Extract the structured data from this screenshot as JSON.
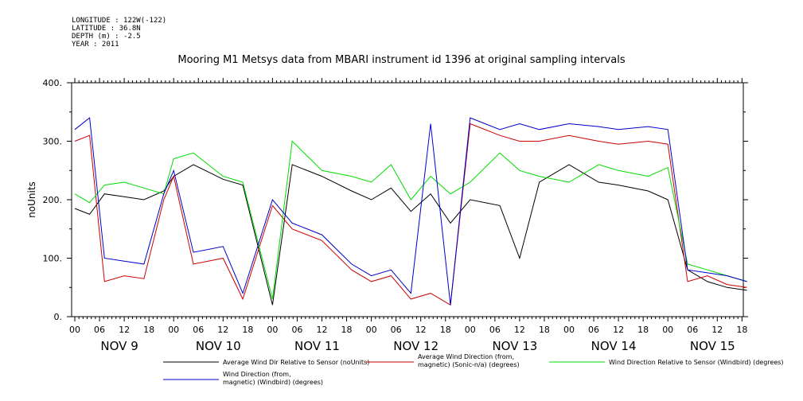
{
  "meta": {
    "longitude": "LONGITUDE : 122W(-122)",
    "latitude": "LATITUDE : 36.8N",
    "depth": "DEPTH (m) : -2.5",
    "year": "YEAR : 2011"
  },
  "chart_data": {
    "type": "line",
    "title": "Mooring M1 Metsys data from MBARI instrument id 1396 at original sampling intervals",
    "ylabel": "noUnits",
    "ylim": [
      0,
      400
    ],
    "yticks": [
      "0.",
      "100.",
      "200.",
      "300.",
      "400."
    ],
    "x_hour_ticks": [
      "00",
      "06",
      "12",
      "18",
      "00",
      "06",
      "12",
      "18",
      "00",
      "06",
      "12",
      "18",
      "00",
      "06",
      "12",
      "18",
      "00",
      "06",
      "12",
      "18",
      "00",
      "06",
      "12",
      "18",
      "00",
      "06",
      "12",
      "18"
    ],
    "day_labels": [
      "NOV  9",
      "NOV 10",
      "NOV 11",
      "NOV 12",
      "NOV 13",
      "NOV 14",
      "NOV 15"
    ],
    "xlim_days": [
      -0.05,
      6.9
    ],
    "grid": false,
    "series": [
      {
        "name": "Average Wind Dir Relative to Sensor (noUnits)",
        "color": "#000000",
        "x": [
          0,
          0.15,
          0.3,
          0.5,
          0.7,
          0.9,
          1.0,
          1.2,
          1.5,
          1.7,
          2.0,
          2.2,
          2.5,
          2.8,
          3.0,
          3.2,
          3.4,
          3.6,
          3.8,
          4.0,
          4.3,
          4.5,
          4.7,
          5.0,
          5.3,
          5.5,
          5.8,
          6.0,
          6.2,
          6.4,
          6.6,
          6.8
        ],
        "y": [
          185,
          175,
          210,
          205,
          200,
          215,
          240,
          260,
          235,
          225,
          20,
          260,
          240,
          215,
          200,
          220,
          180,
          210,
          160,
          200,
          190,
          100,
          230,
          260,
          230,
          225,
          215,
          200,
          80,
          60,
          50,
          45
        ]
      },
      {
        "name": "Average Wind Direction (from, magnetic) (Sonic-n/a) (degrees)",
        "color": "#cc0000",
        "x": [
          0,
          0.15,
          0.3,
          0.5,
          0.7,
          0.9,
          1.0,
          1.2,
          1.5,
          1.7,
          2.0,
          2.2,
          2.5,
          2.8,
          3.0,
          3.2,
          3.4,
          3.6,
          3.8,
          4.0,
          4.3,
          4.5,
          4.7,
          5.0,
          5.3,
          5.5,
          5.8,
          6.0,
          6.2,
          6.4,
          6.6,
          6.8
        ],
        "y": [
          300,
          310,
          60,
          70,
          65,
          200,
          240,
          90,
          100,
          30,
          190,
          150,
          130,
          80,
          60,
          70,
          30,
          40,
          20,
          330,
          310,
          300,
          300,
          310,
          300,
          295,
          300,
          295,
          60,
          70,
          55,
          50
        ]
      },
      {
        "name": "Wind Direction Relative to Sensor (Windbird) (degrees)",
        "color": "#00dd00",
        "x": [
          0,
          0.15,
          0.3,
          0.5,
          0.7,
          0.9,
          1.0,
          1.2,
          1.5,
          1.7,
          2.0,
          2.2,
          2.5,
          2.8,
          3.0,
          3.2,
          3.4,
          3.6,
          3.8,
          4.0,
          4.3,
          4.5,
          4.7,
          5.0,
          5.3,
          5.5,
          5.8,
          6.0,
          6.2,
          6.4,
          6.6,
          6.8
        ],
        "y": [
          210,
          195,
          225,
          230,
          220,
          210,
          270,
          280,
          240,
          230,
          30,
          300,
          250,
          240,
          230,
          260,
          200,
          240,
          210,
          230,
          280,
          250,
          240,
          230,
          260,
          250,
          240,
          255,
          90,
          80,
          70,
          60
        ]
      },
      {
        "name": "Wind Direction (from, magnetic) (Windbird) (degrees)",
        "color": "#0000cc",
        "x": [
          0,
          0.15,
          0.3,
          0.5,
          0.7,
          0.9,
          1.0,
          1.2,
          1.5,
          1.7,
          2.0,
          2.2,
          2.5,
          2.8,
          3.0,
          3.2,
          3.4,
          3.6,
          3.8,
          4.0,
          4.3,
          4.5,
          4.7,
          5.0,
          5.3,
          5.5,
          5.8,
          6.0,
          6.2,
          6.4,
          6.6,
          6.8
        ],
        "y": [
          320,
          340,
          100,
          95,
          90,
          210,
          250,
          110,
          120,
          40,
          200,
          160,
          140,
          90,
          70,
          80,
          40,
          330,
          20,
          340,
          320,
          330,
          320,
          330,
          325,
          320,
          325,
          320,
          80,
          75,
          70,
          60
        ]
      }
    ]
  },
  "legend": [
    {
      "line1": "Average Wind Dir Relative to Sensor (noUnits)",
      "line2": ""
    },
    {
      "line1": "Average Wind Direction (from,",
      "line2": "magnetic) (Sonic-n/a) (degrees)"
    },
    {
      "line1": "Wind Direction Relative to Sensor (Windbird) (degrees)",
      "line2": ""
    },
    {
      "line1": "Wind Direction (from,",
      "line2": "magnetic) (Windbird) (degrees)"
    }
  ]
}
